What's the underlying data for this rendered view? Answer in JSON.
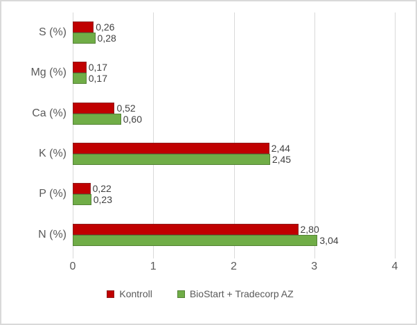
{
  "chart_data": {
    "type": "bar",
    "orientation": "horizontal",
    "title": "",
    "categories": [
      "S (%)",
      "Mg (%)",
      "Ca (%)",
      "K (%)",
      "P (%)",
      "N (%)"
    ],
    "series": [
      {
        "name": "Kontroll",
        "color": "#c00000",
        "border_color": "#8f1e1e",
        "values": [
          0.26,
          0.17,
          0.52,
          2.44,
          0.22,
          2.8
        ],
        "labels": [
          "0,26",
          "0,17",
          "0,52",
          "2,44",
          "0,22",
          "2,80"
        ]
      },
      {
        "name": "BioStart + Tradecorp AZ",
        "color": "#70ad47",
        "border_color": "#548235",
        "values": [
          0.28,
          0.17,
          0.6,
          2.45,
          0.23,
          3.04
        ],
        "labels": [
          "0,28",
          "0,17",
          "0,60",
          "2,45",
          "0,23",
          "3,04"
        ]
      }
    ],
    "xlim": [
      0,
      4
    ],
    "x_ticks": [
      "0",
      "1",
      "2",
      "3",
      "4"
    ],
    "grid": true,
    "gridline_color": "#d9d9d9",
    "axis_text_color": "#595959",
    "data_label_color": "#404040",
    "legend_position": "bottom"
  }
}
